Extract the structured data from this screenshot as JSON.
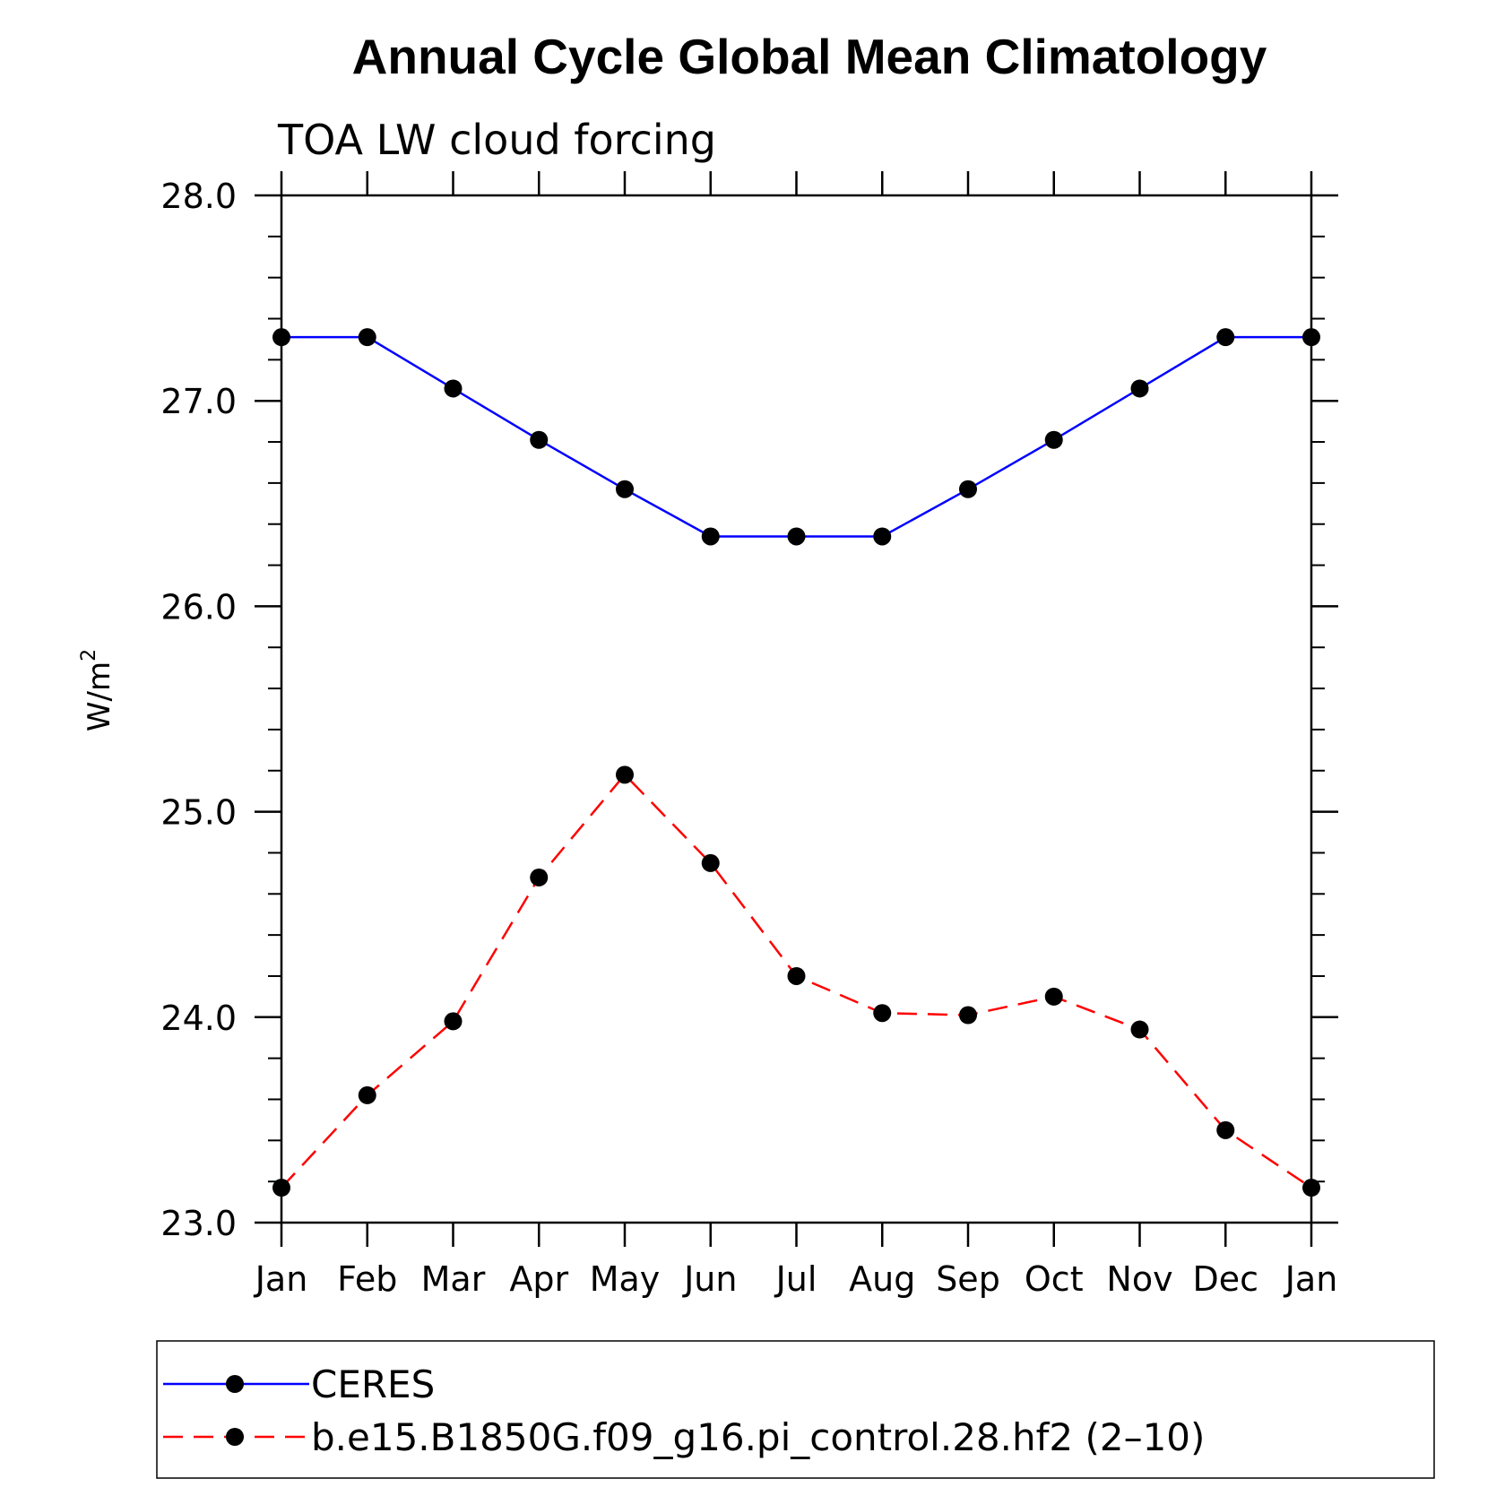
{
  "chart_data": {
    "type": "line",
    "title": "Annual Cycle Global Mean Climatology",
    "subtitle": "TOA LW cloud forcing",
    "xlabel": "",
    "ylabel": "W/m",
    "ylabel_sup": "2",
    "categories": [
      "Jan",
      "Feb",
      "Mar",
      "Apr",
      "May",
      "Jun",
      "Jul",
      "Aug",
      "Sep",
      "Oct",
      "Nov",
      "Dec",
      "Jan"
    ],
    "ylim": [
      23.0,
      28.0
    ],
    "yticks": [
      "23.0",
      "24.0",
      "25.0",
      "26.0",
      "27.0",
      "28.0"
    ],
    "grid": false,
    "legend_placement": "bottom",
    "series": [
      {
        "name": "CERES",
        "color": "#0000ff",
        "dash": "solid",
        "values": [
          27.31,
          27.31,
          27.06,
          26.81,
          26.57,
          26.34,
          26.34,
          26.34,
          26.57,
          26.81,
          27.06,
          27.31,
          27.31
        ]
      },
      {
        "name": "b.e15.B1850G.f09_g16.pi_control.28.hf2 (2–10)",
        "color": "#ff0000",
        "dash": "dashed",
        "values": [
          23.17,
          23.62,
          23.98,
          24.68,
          25.18,
          24.75,
          24.2,
          24.02,
          24.01,
          24.1,
          23.94,
          23.45,
          23.17
        ]
      }
    ]
  }
}
